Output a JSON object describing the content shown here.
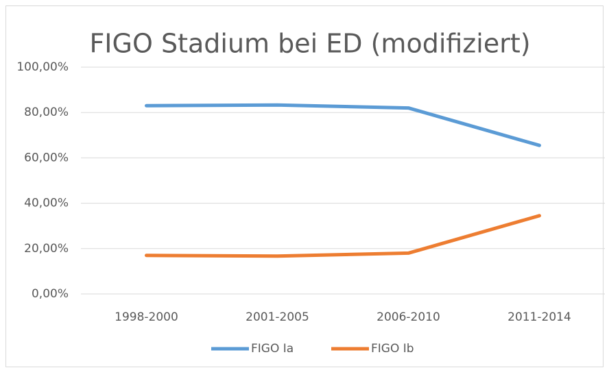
{
  "chart_data": {
    "type": "line",
    "title": "FIGO Stadium bei ED (modifiziert)",
    "categories": [
      "1998-2000",
      "2001-2005",
      "2006-2010",
      "2011-2014"
    ],
    "series": [
      {
        "name": "FIGO Ia",
        "color": "#5b9bd5",
        "values": [
          83.0,
          83.3,
          82.0,
          65.5
        ]
      },
      {
        "name": "FIGO Ib",
        "color": "#ed7d31",
        "values": [
          17.0,
          16.7,
          18.0,
          34.5
        ]
      }
    ],
    "ylim": [
      0,
      100
    ],
    "yticks": [
      {
        "value": 0,
        "label": "0,00%"
      },
      {
        "value": 20,
        "label": "20,00%"
      },
      {
        "value": 40,
        "label": "40,00%"
      },
      {
        "value": 60,
        "label": "60,00%"
      },
      {
        "value": 80,
        "label": "80,00%"
      },
      {
        "value": 100,
        "label": "100,00%"
      }
    ],
    "grid": true,
    "legend": "bottom"
  }
}
